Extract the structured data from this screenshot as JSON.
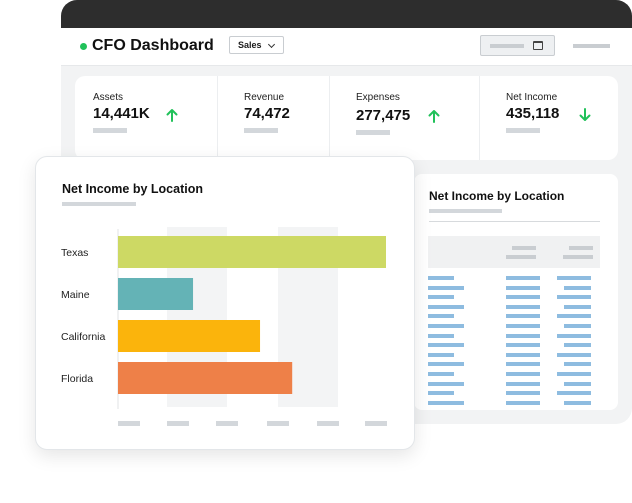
{
  "app": {
    "title": "CFO Dashboard",
    "status_color": "#21c15a",
    "filter_selected": "Sales"
  },
  "kpis": [
    {
      "label": "Assets",
      "value": "14,441K",
      "trend": "up",
      "trend_icon": "arrow-up-icon"
    },
    {
      "label": "Revenue",
      "value": "74,472",
      "trend": "none"
    },
    {
      "label": "Expenses",
      "value": "277,475",
      "trend": "up",
      "trend_icon": "arrow-up-icon"
    },
    {
      "label": "Net Income",
      "value": "435,118",
      "trend": "down",
      "trend_icon": "arrow-down-icon"
    }
  ],
  "colors": {
    "trend_up": "#21c15a",
    "trend_down": "#21c15a",
    "table_bar": "#8ebce0"
  },
  "side_card": {
    "title": "Net Income by Location"
  },
  "chart_data": {
    "type": "bar",
    "orientation": "horizontal",
    "title": "Net Income by Location",
    "categories": [
      "Texas",
      "Maine",
      "California",
      "Florida"
    ],
    "values": [
      100,
      28,
      53,
      65
    ],
    "colors": [
      "#cdd964",
      "#64b3b6",
      "#fbb40c",
      "#ee8048"
    ],
    "xlim": [
      0,
      100
    ],
    "grid": "bands",
    "legend": "none"
  }
}
